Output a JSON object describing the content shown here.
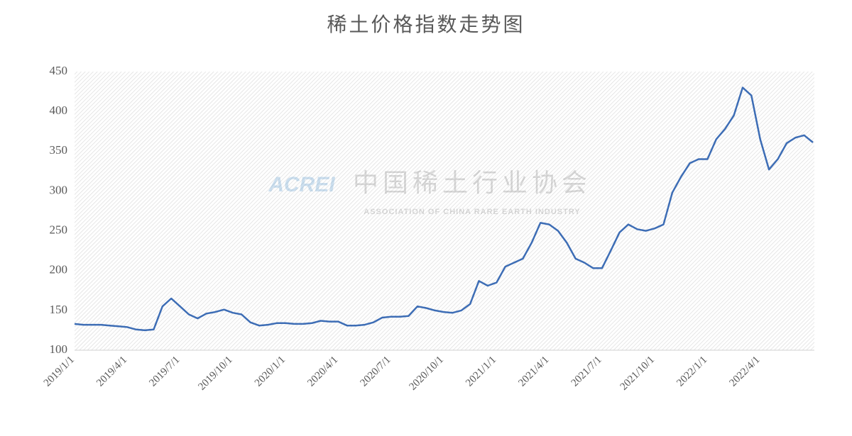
{
  "chart_data": {
    "type": "line",
    "title": "稀土价格指数走势图",
    "watermark": {
      "logo": "ACREI",
      "name": "中国稀土行业协会",
      "subtitle": "ASSOCIATION OF CHINA RARE EARTH INDUSTRY"
    },
    "categories": [
      "2019/1/1",
      null,
      null,
      null,
      null,
      null,
      "2019/4/1",
      null,
      null,
      null,
      null,
      null,
      "2019/7/1",
      null,
      null,
      null,
      null,
      null,
      "2019/10/1",
      null,
      null,
      null,
      null,
      null,
      "2020/1/1",
      null,
      null,
      null,
      null,
      null,
      "2020/4/1",
      null,
      null,
      null,
      null,
      null,
      "2020/7/1",
      null,
      null,
      null,
      null,
      null,
      "2020/10/1",
      null,
      null,
      null,
      null,
      null,
      "2021/1/1",
      null,
      null,
      null,
      null,
      null,
      "2021/4/1",
      null,
      null,
      null,
      null,
      null,
      "2021/7/1",
      null,
      null,
      null,
      null,
      null,
      "2021/10/1",
      null,
      null,
      null,
      null,
      null,
      "2022/1/1",
      null,
      null,
      null,
      null,
      null,
      "2022/4/1",
      null,
      null,
      null,
      null,
      null,
      null
    ],
    "series": [
      {
        "name": "稀土价格指数",
        "color": "#3d6db5",
        "values": [
          133,
          132,
          132,
          132,
          131,
          130,
          129,
          126,
          125,
          126,
          155,
          165,
          155,
          145,
          140,
          146,
          148,
          151,
          147,
          145,
          135,
          131,
          132,
          134,
          134,
          133,
          133,
          134,
          137,
          136,
          136,
          131,
          131,
          132,
          135,
          141,
          142,
          142,
          143,
          155,
          153,
          150,
          148,
          147,
          150,
          158,
          187,
          181,
          185,
          205,
          210,
          215,
          235,
          260,
          258,
          250,
          235,
          215,
          210,
          203,
          203,
          225,
          248,
          258,
          252,
          250,
          253,
          258,
          298,
          318,
          335,
          340,
          340,
          365,
          378,
          395,
          430,
          420,
          365,
          327,
          340,
          360,
          367,
          370,
          361
        ]
      }
    ],
    "ylim": [
      100,
      450
    ],
    "yticks": [
      100,
      150,
      200,
      250,
      300,
      350,
      400,
      450
    ],
    "grid": false
  }
}
